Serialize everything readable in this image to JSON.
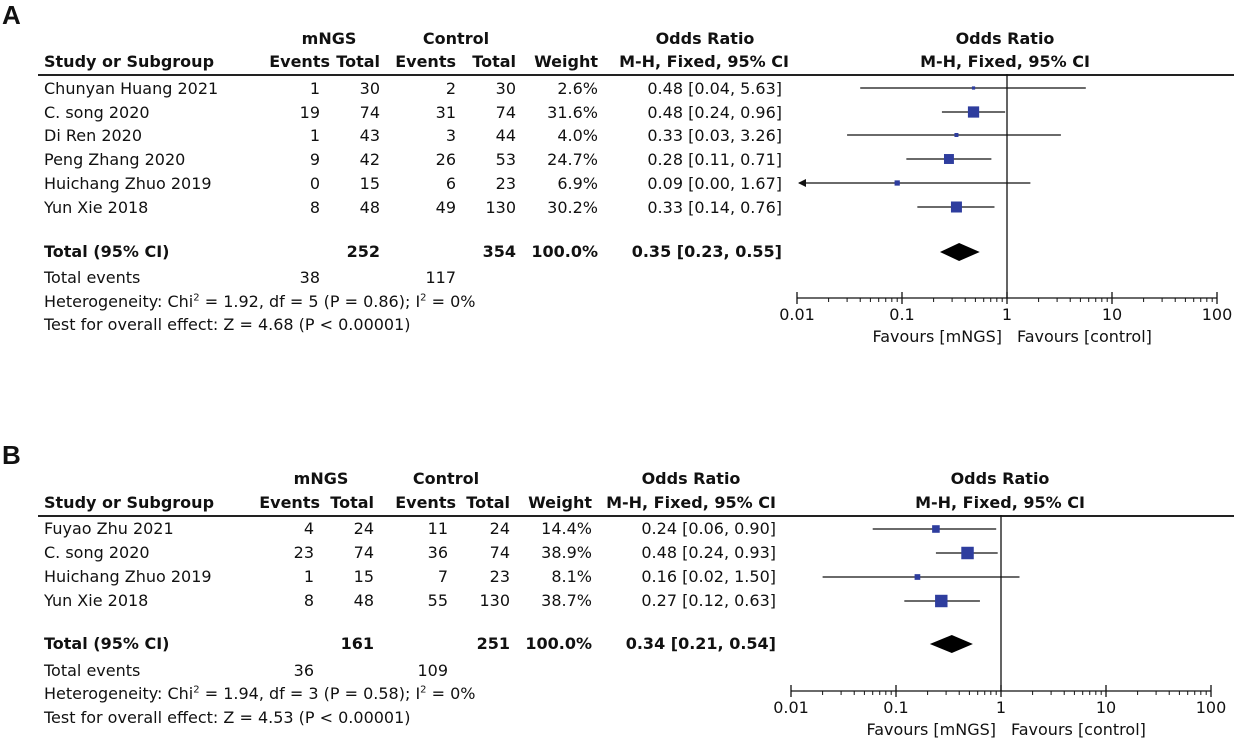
{
  "chart_data": [
    {
      "type": "forest",
      "panel_label": "A",
      "headers": {
        "group1": "mNGS",
        "group2": "Control",
        "study": "Study or Subgroup",
        "events": "Events",
        "total": "Total",
        "weight": "Weight",
        "or_title": "Odds Ratio",
        "or_method": "M-H, Fixed, 95% CI",
        "plot_title": "Odds Ratio",
        "plot_method": "M-H, Fixed, 95% CI"
      },
      "studies": [
        {
          "name": "Chunyan Huang 2021",
          "e1": "1",
          "t1": "30",
          "e2": "2",
          "t2": "30",
          "weight": "2.6%",
          "or_text": "0.48 [0.04, 5.63]",
          "or": 0.48,
          "lo": 0.04,
          "hi": 5.63,
          "w": 2.6
        },
        {
          "name": "C. song 2020",
          "e1": "19",
          "t1": "74",
          "e2": "31",
          "t2": "74",
          "weight": "31.6%",
          "or_text": "0.48 [0.24, 0.96]",
          "or": 0.48,
          "lo": 0.24,
          "hi": 0.96,
          "w": 31.6
        },
        {
          "name": "Di Ren 2020",
          "e1": "1",
          "t1": "43",
          "e2": "3",
          "t2": "44",
          "weight": "4.0%",
          "or_text": "0.33 [0.03, 3.26]",
          "or": 0.33,
          "lo": 0.03,
          "hi": 3.26,
          "w": 4.0
        },
        {
          "name": "Peng Zhang 2020",
          "e1": "9",
          "t1": "42",
          "e2": "26",
          "t2": "53",
          "weight": "24.7%",
          "or_text": "0.28 [0.11, 0.71]",
          "or": 0.28,
          "lo": 0.11,
          "hi": 0.71,
          "w": 24.7
        },
        {
          "name": "Huichang Zhuo 2019",
          "e1": "0",
          "t1": "15",
          "e2": "6",
          "t2": "23",
          "weight": "6.9%",
          "or_text": "0.09 [0.00, 1.67]",
          "or": 0.09,
          "lo": 0.004,
          "hi": 1.67,
          "w": 6.9
        },
        {
          "name": "Yun Xie 2018",
          "e1": "8",
          "t1": "48",
          "e2": "49",
          "t2": "130",
          "weight": "30.2%",
          "or_text": "0.33 [0.14, 0.76]",
          "or": 0.33,
          "lo": 0.14,
          "hi": 0.76,
          "w": 30.2
        }
      ],
      "total": {
        "label": "Total (95% CI)",
        "t1": "252",
        "t2": "354",
        "weight": "100.0%",
        "or_text": "0.35 [0.23, 0.55]",
        "or": 0.35,
        "lo": 0.23,
        "hi": 0.55
      },
      "total_events": {
        "label": "Total events",
        "e1": "38",
        "e2": "117"
      },
      "heterogeneity": {
        "prefix": "Heterogeneity: Chi",
        "mid": " = 1.92, df = 5 (P = 0.86); I",
        "suffix": " = 0%",
        "sup": "2"
      },
      "overall_effect": "Test for overall effect: Z = 4.68 (P < 0.00001)",
      "axis": {
        "scale": "log",
        "ticks": [
          0.01,
          0.1,
          1,
          10,
          100
        ],
        "tick_labels": [
          "0.01",
          "0.1",
          "1",
          "10",
          "100"
        ],
        "range": [
          0.01,
          100
        ],
        "favours_left": "Favours [mNGS]",
        "favours_right": "Favours [control]"
      }
    },
    {
      "type": "forest",
      "panel_label": "B",
      "headers": {
        "group1": "mNGS",
        "group2": "Control",
        "study": "Study or Subgroup",
        "events": "Events",
        "total": "Total",
        "weight": "Weight",
        "or_title": "Odds Ratio",
        "or_method": "M-H, Fixed, 95% CI",
        "plot_title": "Odds Ratio",
        "plot_method": "M-H, Fixed, 95% CI"
      },
      "studies": [
        {
          "name": "Fuyao Zhu 2021",
          "e1": "4",
          "t1": "24",
          "e2": "11",
          "t2": "24",
          "weight": "14.4%",
          "or_text": "0.24 [0.06, 0.90]",
          "or": 0.24,
          "lo": 0.06,
          "hi": 0.9,
          "w": 14.4
        },
        {
          "name": "C. song 2020",
          "e1": "23",
          "t1": "74",
          "e2": "36",
          "t2": "74",
          "weight": "38.9%",
          "or_text": "0.48 [0.24, 0.93]",
          "or": 0.48,
          "lo": 0.24,
          "hi": 0.93,
          "w": 38.9
        },
        {
          "name": "Huichang Zhuo 2019",
          "e1": "1",
          "t1": "15",
          "e2": "7",
          "t2": "23",
          "weight": "8.1%",
          "or_text": "0.16 [0.02, 1.50]",
          "or": 0.16,
          "lo": 0.02,
          "hi": 1.5,
          "w": 8.1
        },
        {
          "name": "Yun Xie 2018",
          "e1": "8",
          "t1": "48",
          "e2": "55",
          "t2": "130",
          "weight": "38.7%",
          "or_text": "0.27 [0.12, 0.63]",
          "or": 0.27,
          "lo": 0.12,
          "hi": 0.63,
          "w": 38.7
        }
      ],
      "total": {
        "label": "Total (95% CI)",
        "t1": "161",
        "t2": "251",
        "weight": "100.0%",
        "or_text": "0.34 [0.21, 0.54]",
        "or": 0.34,
        "lo": 0.21,
        "hi": 0.54
      },
      "total_events": {
        "label": "Total events",
        "e1": "36",
        "e2": "109"
      },
      "heterogeneity": {
        "prefix": "Heterogeneity: Chi",
        "mid": " = 1.94, df = 3 (P = 0.58); I",
        "suffix": " = 0%",
        "sup": "2"
      },
      "overall_effect": "Test for overall effect: Z = 4.53 (P < 0.00001)",
      "axis": {
        "scale": "log",
        "ticks": [
          0.01,
          0.1,
          1,
          10,
          100
        ],
        "tick_labels": [
          "0.01",
          "0.1",
          "1",
          "10",
          "100"
        ],
        "range": [
          0.01,
          100
        ],
        "favours_left": "Favours [mNGS]",
        "favours_right": "Favours [control]"
      }
    }
  ],
  "colors": {
    "marker": "#2e3d9e",
    "line": "#111111",
    "diamond": "#000000"
  }
}
